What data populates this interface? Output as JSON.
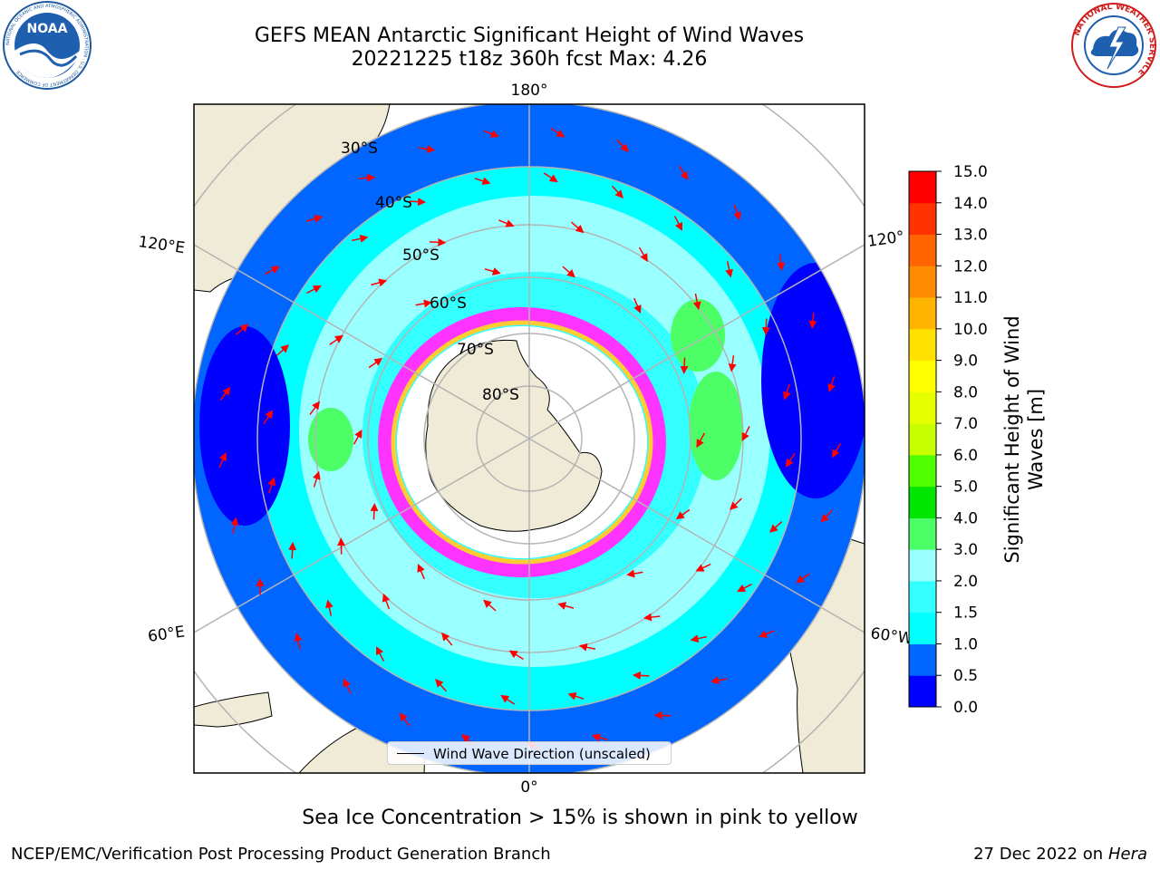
{
  "title": {
    "line1": "GEFS MEAN Antarctic Significant Height of Wind Waves",
    "line2": "20221225 t18z 360h fcst   Max: 4.26"
  },
  "logos": {
    "noaa": "NOAA",
    "noaa_ring": "NATIONAL OCEANIC AND ATMOSPHERIC ADMINISTRATION · U.S. DEPARTMENT OF COMMERCE",
    "nws_ring": "NATIONAL WEATHER SERVICE"
  },
  "map": {
    "projection": "south-polar-stereographic",
    "longitude_labels": {
      "top": "180°",
      "bottom": "0°",
      "left_upper": "120°E",
      "left_lower": "60°E",
      "right_upper": "120°",
      "right_lower": "60°W"
    },
    "latitude_labels": [
      "30°S",
      "40°S",
      "50°S",
      "60°S",
      "70°S",
      "80°S"
    ],
    "colors": {
      "land": "#efebd6",
      "graticule": "#b4b4b4",
      "arrow": "#ff0000",
      "sea_ice": [
        "#ff33ff",
        "#ff99cc",
        "#ffcc33",
        "#ffffff"
      ]
    }
  },
  "legend": {
    "label": "Wind Wave Direction (unscaled)"
  },
  "colorbar": {
    "title_line1": "Significant Height of Wind",
    "title_line2": "Waves [m]",
    "ticks": [
      "0.0",
      "0.5",
      "1.0",
      "1.5",
      "2.0",
      "3.0",
      "4.0",
      "5.0",
      "6.0",
      "7.0",
      "8.0",
      "9.0",
      "10.0",
      "11.0",
      "12.0",
      "13.0",
      "14.0",
      "15.0"
    ],
    "colors": [
      "#0000ff",
      "#0066ff",
      "#00ffff",
      "#33ffff",
      "#99ffff",
      "#4cff66",
      "#00e600",
      "#4dff00",
      "#c8ff00",
      "#e6ff00",
      "#ffff00",
      "#ffe100",
      "#ffb400",
      "#ff8c00",
      "#ff6400",
      "#ff3200",
      "#ff0000"
    ]
  },
  "notes": {
    "sea_ice": "Sea Ice Concentration > 15% is shown in pink to yellow"
  },
  "footer": {
    "left": "NCEP/EMC/Verification Post Processing Product Generation Branch",
    "date": "27 Dec 2022 on",
    "host": "Hera"
  }
}
